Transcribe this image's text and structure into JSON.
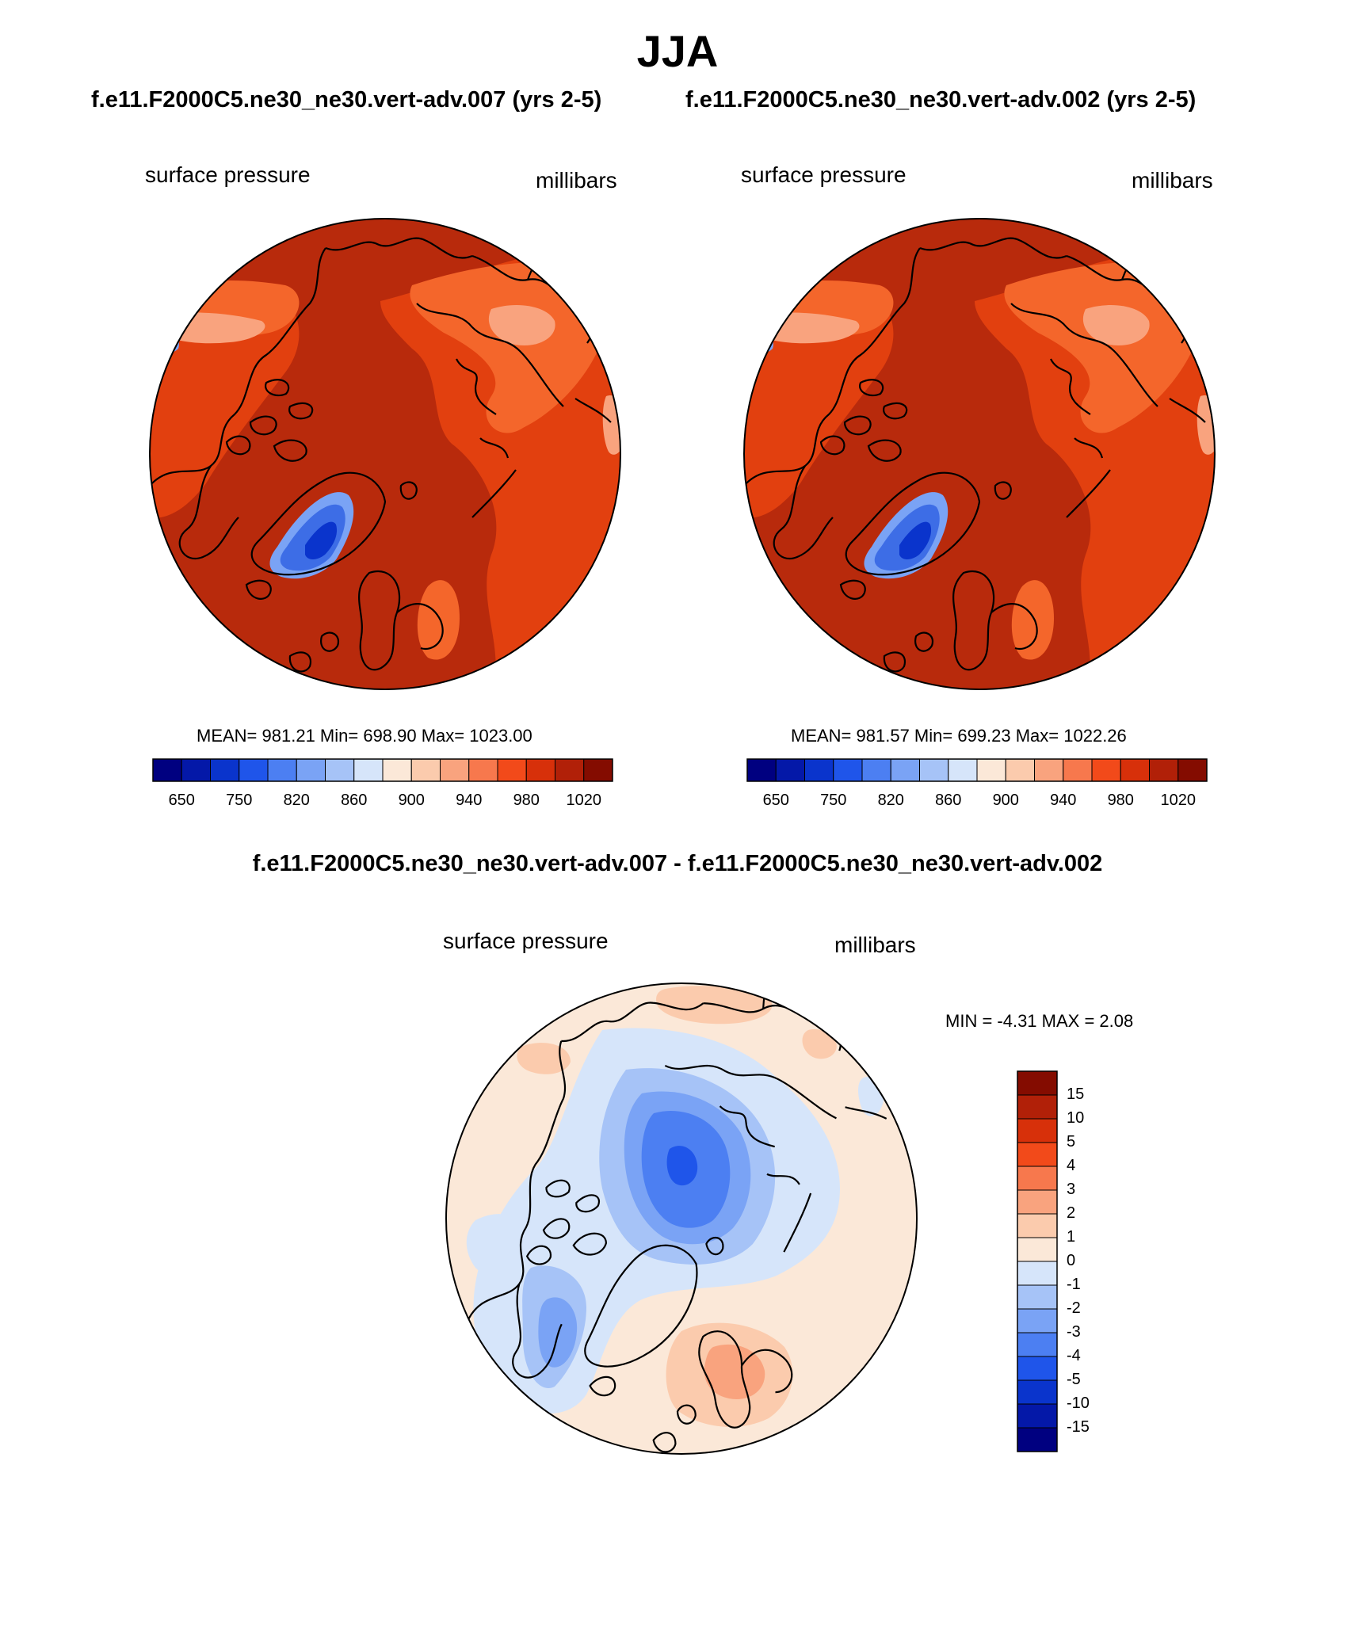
{
  "title": "JJA",
  "case1": "f.e11.F2000C5.ne30_ne30.vert-adv.007 (yrs 2-5)",
  "case2": "f.e11.F2000C5.ne30_ne30.vert-adv.002 (yrs 2-5)",
  "diff_title": "f.e11.F2000C5.ne30_ne30.vert-adv.007 - f.e11.F2000C5.ne30_ne30.vert-adv.002",
  "panels": [
    {
      "variable": "surface pressure",
      "units": "millibars",
      "stats": "MEAN= 981.21  Min= 698.90  Max= 1023.00"
    },
    {
      "variable": "surface pressure",
      "units": "millibars",
      "stats": "MEAN= 981.57  Min= 699.23  Max= 1022.26"
    }
  ],
  "diff_panel": {
    "variable": "surface pressure",
    "units": "millibars",
    "stats": "MIN =  -4.31 MAX =   2.08"
  },
  "colorbar": {
    "colors": [
      "#000080",
      "#0418a8",
      "#0a34cc",
      "#1f55ea",
      "#4c7ff2",
      "#7aa3f5",
      "#a6c3f7",
      "#d6e5fa",
      "#fbe8d8",
      "#fbcbad",
      "#f9a37e",
      "#f7784d",
      "#f24a1a",
      "#d7300a",
      "#b12008",
      "#840c00"
    ],
    "ticks": [
      "650",
      "750",
      "820",
      "860",
      "900",
      "940",
      "980",
      "1020"
    ]
  },
  "diff_colorbar": {
    "colors": [
      "#840c00",
      "#b12008",
      "#d7300a",
      "#f24a1a",
      "#f7784d",
      "#f9a37e",
      "#fbcbad",
      "#fbe8d8",
      "#d6e5fa",
      "#a6c3f7",
      "#7aa3f5",
      "#4c7ff2",
      "#1f55ea",
      "#0a34cc",
      "#0418a8",
      "#000080"
    ],
    "ticks": [
      "15",
      "10",
      "5",
      "4",
      "3",
      "2",
      "1",
      "0",
      "-1",
      "-2",
      "-3",
      "-4",
      "-5",
      "-10",
      "-15"
    ]
  },
  "field_colors": {
    "base": "#b82a0c",
    "mid": "#e2400f",
    "light": "#f4662b",
    "pale": "#f9a37e",
    "ice_light": "#7aa3f5",
    "ice_mid": "#3d6de6",
    "ice_deep": "#0a34cc",
    "dark": "#840c00",
    "diff_base": "#fbe8d8",
    "diff_light": "#d6e5fa",
    "diff_mid": "#a6c3f7",
    "diff_blue": "#7aa3f5",
    "diff_blue2": "#4c7ff2",
    "diff_deep": "#1f55ea",
    "diff_warm": "#fbcbad",
    "diff_warm2": "#f9a37e"
  }
}
